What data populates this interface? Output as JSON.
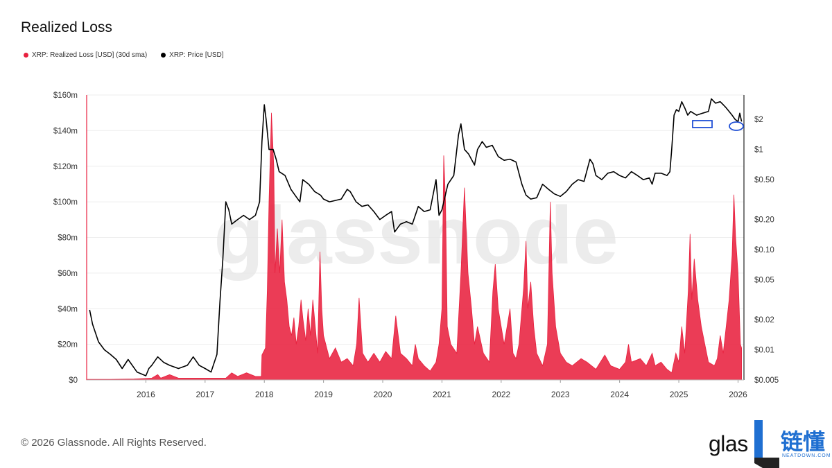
{
  "title": "Realized Loss",
  "legend": [
    {
      "label": "XRP: Realized Loss [USD] (30d sma)",
      "color": "#e8213f"
    },
    {
      "label": "XRP: Price [USD]",
      "color": "#000000"
    }
  ],
  "watermark": "glassnode",
  "copyright": "© 2026 Glassnode. All Rights Reserved.",
  "brand": {
    "glas": "glas",
    "cn": "链懂",
    "en": "NEATDOWN.COM"
  },
  "chart_data": {
    "type": "area",
    "title": "Realized Loss",
    "x_axis": {
      "ticks": [
        "2016",
        "2017",
        "2018",
        "2019",
        "2020",
        "2021",
        "2022",
        "2023",
        "2024",
        "2025",
        "2026"
      ],
      "range": [
        2015.0,
        2026.1
      ]
    },
    "y_left": {
      "ticks": [
        "$0",
        "$20m",
        "$40m",
        "$60m",
        "$80m",
        "$100m",
        "$120m",
        "$140m",
        "$160m"
      ],
      "range": [
        0,
        160
      ]
    },
    "y_right": {
      "scale": "log",
      "ticks": [
        "$0.005",
        "$0.01",
        "$0.02",
        "$0.05",
        "$0.10",
        "$0.20",
        "$0.50",
        "$1",
        "$2"
      ],
      "range": [
        0.005,
        3.5
      ]
    },
    "grid": true,
    "series": [
      {
        "name": "XRP: Realized Loss [USD] (30d sma)",
        "axis": "left",
        "color": "#e8213f",
        "points": [
          [
            2015.0,
            0.3
          ],
          [
            2015.4,
            0.3
          ],
          [
            2015.8,
            0.5
          ],
          [
            2016.1,
            1
          ],
          [
            2016.2,
            3
          ],
          [
            2016.25,
            1
          ],
          [
            2016.4,
            3
          ],
          [
            2016.55,
            1
          ],
          [
            2016.75,
            1
          ],
          [
            2017.1,
            1
          ],
          [
            2017.35,
            1
          ],
          [
            2017.45,
            4
          ],
          [
            2017.55,
            2
          ],
          [
            2017.7,
            4
          ],
          [
            2017.85,
            2
          ],
          [
            2017.95,
            2
          ],
          [
            2017.96,
            14
          ],
          [
            2018.02,
            18
          ],
          [
            2018.05,
            50
          ],
          [
            2018.08,
            100
          ],
          [
            2018.12,
            150
          ],
          [
            2018.16,
            120
          ],
          [
            2018.18,
            60
          ],
          [
            2018.22,
            85
          ],
          [
            2018.26,
            60
          ],
          [
            2018.3,
            90
          ],
          [
            2018.34,
            55
          ],
          [
            2018.38,
            45
          ],
          [
            2018.42,
            30
          ],
          [
            2018.46,
            25
          ],
          [
            2018.5,
            35
          ],
          [
            2018.54,
            20
          ],
          [
            2018.58,
            30
          ],
          [
            2018.62,
            45
          ],
          [
            2018.65,
            35
          ],
          [
            2018.7,
            22
          ],
          [
            2018.74,
            40
          ],
          [
            2018.78,
            25
          ],
          [
            2018.82,
            45
          ],
          [
            2018.86,
            30
          ],
          [
            2018.9,
            15
          ],
          [
            2018.94,
            72
          ],
          [
            2018.97,
            40
          ],
          [
            2019.0,
            25
          ],
          [
            2019.1,
            12
          ],
          [
            2019.2,
            18
          ],
          [
            2019.3,
            10
          ],
          [
            2019.4,
            12
          ],
          [
            2019.5,
            8
          ],
          [
            2019.56,
            20
          ],
          [
            2019.6,
            46
          ],
          [
            2019.66,
            15
          ],
          [
            2019.75,
            10
          ],
          [
            2019.85,
            15
          ],
          [
            2019.95,
            10
          ],
          [
            2020.05,
            16
          ],
          [
            2020.15,
            12
          ],
          [
            2020.22,
            36
          ],
          [
            2020.3,
            15
          ],
          [
            2020.4,
            12
          ],
          [
            2020.5,
            8
          ],
          [
            2020.55,
            20
          ],
          [
            2020.6,
            12
          ],
          [
            2020.7,
            8
          ],
          [
            2020.8,
            5
          ],
          [
            2020.9,
            10
          ],
          [
            2020.95,
            20
          ],
          [
            2021.0,
            40
          ],
          [
            2021.03,
            126
          ],
          [
            2021.06,
            100
          ],
          [
            2021.09,
            30
          ],
          [
            2021.15,
            20
          ],
          [
            2021.25,
            15
          ],
          [
            2021.32,
            60
          ],
          [
            2021.38,
            108
          ],
          [
            2021.44,
            60
          ],
          [
            2021.5,
            40
          ],
          [
            2021.55,
            20
          ],
          [
            2021.6,
            30
          ],
          [
            2021.7,
            15
          ],
          [
            2021.8,
            10
          ],
          [
            2021.86,
            50
          ],
          [
            2021.9,
            65
          ],
          [
            2021.95,
            40
          ],
          [
            2022.05,
            20
          ],
          [
            2022.1,
            30
          ],
          [
            2022.15,
            40
          ],
          [
            2022.2,
            15
          ],
          [
            2022.25,
            12
          ],
          [
            2022.3,
            20
          ],
          [
            2022.38,
            52
          ],
          [
            2022.42,
            78
          ],
          [
            2022.45,
            40
          ],
          [
            2022.5,
            55
          ],
          [
            2022.55,
            30
          ],
          [
            2022.6,
            15
          ],
          [
            2022.7,
            8
          ],
          [
            2022.78,
            20
          ],
          [
            2022.83,
            100
          ],
          [
            2022.86,
            60
          ],
          [
            2022.92,
            30
          ],
          [
            2023.0,
            15
          ],
          [
            2023.1,
            10
          ],
          [
            2023.2,
            8
          ],
          [
            2023.35,
            12
          ],
          [
            2023.45,
            10
          ],
          [
            2023.6,
            6
          ],
          [
            2023.75,
            14
          ],
          [
            2023.85,
            8
          ],
          [
            2024.0,
            6
          ],
          [
            2024.1,
            10
          ],
          [
            2024.15,
            20
          ],
          [
            2024.2,
            10
          ],
          [
            2024.35,
            12
          ],
          [
            2024.45,
            8
          ],
          [
            2024.55,
            15
          ],
          [
            2024.6,
            8
          ],
          [
            2024.7,
            10
          ],
          [
            2024.8,
            6
          ],
          [
            2024.88,
            4
          ],
          [
            2024.95,
            15
          ],
          [
            2025.0,
            10
          ],
          [
            2025.05,
            30
          ],
          [
            2025.1,
            15
          ],
          [
            2025.16,
            50
          ],
          [
            2025.19,
            82
          ],
          [
            2025.22,
            45
          ],
          [
            2025.26,
            68
          ],
          [
            2025.32,
            45
          ],
          [
            2025.38,
            30
          ],
          [
            2025.44,
            20
          ],
          [
            2025.5,
            10
          ],
          [
            2025.6,
            8
          ],
          [
            2025.65,
            12
          ],
          [
            2025.7,
            25
          ],
          [
            2025.75,
            15
          ],
          [
            2025.8,
            30
          ],
          [
            2025.85,
            45
          ],
          [
            2025.9,
            70
          ],
          [
            2025.93,
            104
          ],
          [
            2025.96,
            80
          ],
          [
            2026.0,
            60
          ],
          [
            2026.04,
            20
          ],
          [
            2026.06,
            18
          ]
        ]
      },
      {
        "name": "XRP: Price [USD]",
        "axis": "right",
        "color": "#000000",
        "points": [
          [
            2015.05,
            0.025
          ],
          [
            2015.1,
            0.018
          ],
          [
            2015.2,
            0.012
          ],
          [
            2015.3,
            0.01
          ],
          [
            2015.4,
            0.009
          ],
          [
            2015.5,
            0.008
          ],
          [
            2015.6,
            0.0065
          ],
          [
            2015.7,
            0.008
          ],
          [
            2015.85,
            0.006
          ],
          [
            2016.0,
            0.0055
          ],
          [
            2016.05,
            0.0065
          ],
          [
            2016.1,
            0.007
          ],
          [
            2016.2,
            0.0085
          ],
          [
            2016.3,
            0.0075
          ],
          [
            2016.4,
            0.007
          ],
          [
            2016.55,
            0.0065
          ],
          [
            2016.7,
            0.007
          ],
          [
            2016.8,
            0.0085
          ],
          [
            2016.9,
            0.007
          ],
          [
            2017.0,
            0.0065
          ],
          [
            2017.1,
            0.006
          ],
          [
            2017.2,
            0.009
          ],
          [
            2017.25,
            0.03
          ],
          [
            2017.3,
            0.08
          ],
          [
            2017.35,
            0.3
          ],
          [
            2017.4,
            0.25
          ],
          [
            2017.45,
            0.18
          ],
          [
            2017.55,
            0.2
          ],
          [
            2017.65,
            0.22
          ],
          [
            2017.75,
            0.2
          ],
          [
            2017.85,
            0.22
          ],
          [
            2017.92,
            0.3
          ],
          [
            2017.96,
            1.2
          ],
          [
            2018.0,
            2.8
          ],
          [
            2018.03,
            2.0
          ],
          [
            2018.08,
            1.0
          ],
          [
            2018.15,
            1.0
          ],
          [
            2018.2,
            0.8
          ],
          [
            2018.25,
            0.6
          ],
          [
            2018.35,
            0.55
          ],
          [
            2018.45,
            0.4
          ],
          [
            2018.55,
            0.33
          ],
          [
            2018.6,
            0.3
          ],
          [
            2018.65,
            0.5
          ],
          [
            2018.75,
            0.45
          ],
          [
            2018.85,
            0.38
          ],
          [
            2018.95,
            0.35
          ],
          [
            2019.0,
            0.32
          ],
          [
            2019.1,
            0.3
          ],
          [
            2019.2,
            0.31
          ],
          [
            2019.3,
            0.32
          ],
          [
            2019.4,
            0.4
          ],
          [
            2019.45,
            0.38
          ],
          [
            2019.55,
            0.3
          ],
          [
            2019.65,
            0.27
          ],
          [
            2019.75,
            0.28
          ],
          [
            2019.85,
            0.24
          ],
          [
            2019.95,
            0.2
          ],
          [
            2020.05,
            0.22
          ],
          [
            2020.15,
            0.24
          ],
          [
            2020.2,
            0.15
          ],
          [
            2020.3,
            0.18
          ],
          [
            2020.4,
            0.19
          ],
          [
            2020.5,
            0.18
          ],
          [
            2020.6,
            0.27
          ],
          [
            2020.7,
            0.24
          ],
          [
            2020.8,
            0.25
          ],
          [
            2020.9,
            0.5
          ],
          [
            2020.95,
            0.22
          ],
          [
            2021.0,
            0.25
          ],
          [
            2021.1,
            0.45
          ],
          [
            2021.2,
            0.55
          ],
          [
            2021.28,
            1.4
          ],
          [
            2021.32,
            1.8
          ],
          [
            2021.38,
            1.0
          ],
          [
            2021.45,
            0.9
          ],
          [
            2021.55,
            0.7
          ],
          [
            2021.6,
            1.0
          ],
          [
            2021.68,
            1.2
          ],
          [
            2021.75,
            1.05
          ],
          [
            2021.85,
            1.1
          ],
          [
            2021.95,
            0.85
          ],
          [
            2022.05,
            0.78
          ],
          [
            2022.15,
            0.8
          ],
          [
            2022.25,
            0.75
          ],
          [
            2022.35,
            0.45
          ],
          [
            2022.42,
            0.35
          ],
          [
            2022.5,
            0.32
          ],
          [
            2022.6,
            0.33
          ],
          [
            2022.7,
            0.45
          ],
          [
            2022.8,
            0.4
          ],
          [
            2022.9,
            0.36
          ],
          [
            2023.0,
            0.34
          ],
          [
            2023.1,
            0.38
          ],
          [
            2023.2,
            0.45
          ],
          [
            2023.3,
            0.5
          ],
          [
            2023.4,
            0.48
          ],
          [
            2023.5,
            0.8
          ],
          [
            2023.55,
            0.72
          ],
          [
            2023.6,
            0.55
          ],
          [
            2023.7,
            0.5
          ],
          [
            2023.8,
            0.58
          ],
          [
            2023.9,
            0.6
          ],
          [
            2024.0,
            0.55
          ],
          [
            2024.1,
            0.52
          ],
          [
            2024.2,
            0.6
          ],
          [
            2024.3,
            0.55
          ],
          [
            2024.4,
            0.5
          ],
          [
            2024.5,
            0.52
          ],
          [
            2024.55,
            0.45
          ],
          [
            2024.6,
            0.58
          ],
          [
            2024.7,
            0.58
          ],
          [
            2024.8,
            0.55
          ],
          [
            2024.85,
            0.6
          ],
          [
            2024.88,
            1.0
          ],
          [
            2024.92,
            2.2
          ],
          [
            2024.96,
            2.5
          ],
          [
            2025.0,
            2.4
          ],
          [
            2025.05,
            3.0
          ],
          [
            2025.1,
            2.6
          ],
          [
            2025.15,
            2.2
          ],
          [
            2025.2,
            2.4
          ],
          [
            2025.3,
            2.2
          ],
          [
            2025.4,
            2.3
          ],
          [
            2025.5,
            2.4
          ],
          [
            2025.55,
            3.2
          ],
          [
            2025.62,
            2.9
          ],
          [
            2025.7,
            3.0
          ],
          [
            2025.75,
            2.8
          ],
          [
            2025.8,
            2.6
          ],
          [
            2025.85,
            2.4
          ],
          [
            2025.9,
            2.2
          ],
          [
            2025.95,
            2.0
          ],
          [
            2026.0,
            1.9
          ],
          [
            2026.03,
            2.3
          ],
          [
            2026.06,
            1.9
          ]
        ]
      }
    ]
  }
}
